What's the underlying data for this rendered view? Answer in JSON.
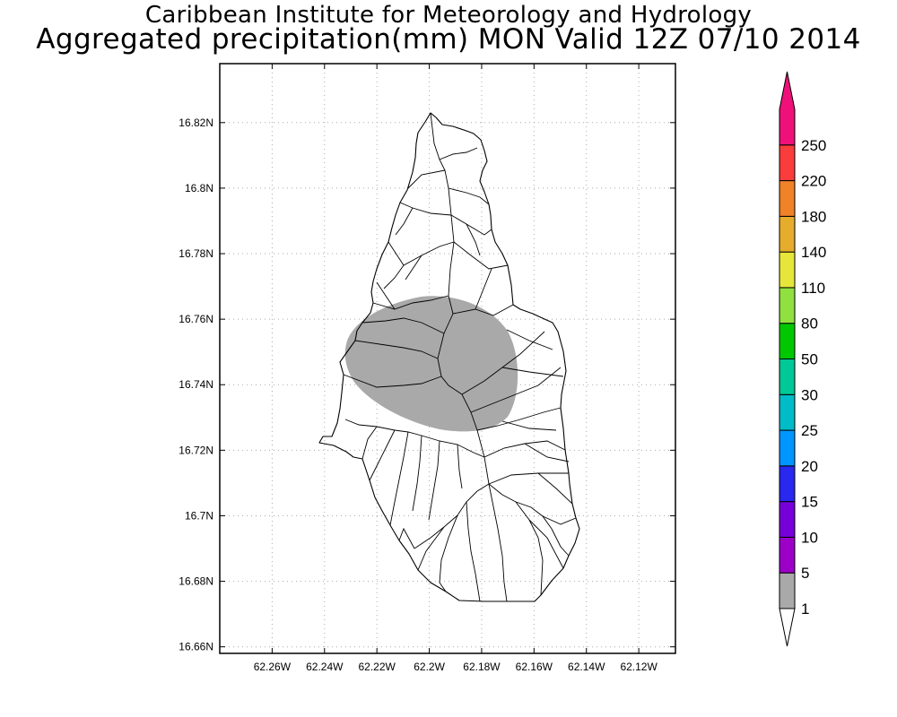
{
  "title": {
    "line1": "Caribbean Institute for Meteorology and Hydrology",
    "line2": "Aggregated precipitation(mm) MON Valid 12Z 07/10 2014"
  },
  "map": {
    "lon_range": [
      -62.28,
      -62.106
    ],
    "lat_range": [
      16.658,
      16.838
    ],
    "x_ticks": [
      {
        "value": -62.26,
        "label": "62.26W"
      },
      {
        "value": -62.24,
        "label": "62.24W"
      },
      {
        "value": -62.22,
        "label": "62.22W"
      },
      {
        "value": -62.2,
        "label": "62.2W"
      },
      {
        "value": -62.18,
        "label": "62.18W"
      },
      {
        "value": -62.16,
        "label": "62.16W"
      },
      {
        "value": -62.14,
        "label": "62.14W"
      },
      {
        "value": -62.12,
        "label": "62.12W"
      }
    ],
    "y_ticks": [
      {
        "value": 16.66,
        "label": "16.66N"
      },
      {
        "value": 16.68,
        "label": "16.68N"
      },
      {
        "value": 16.7,
        "label": "16.7N"
      },
      {
        "value": 16.72,
        "label": "16.72N"
      },
      {
        "value": 16.74,
        "label": "16.74N"
      },
      {
        "value": 16.76,
        "label": "16.76N"
      },
      {
        "value": 16.78,
        "label": "16.78N"
      },
      {
        "value": 16.8,
        "label": "16.8N"
      },
      {
        "value": 16.82,
        "label": "16.82N"
      }
    ],
    "grid": true,
    "precip_class": "1-5",
    "precip_color": "#a9a9a9"
  },
  "colorbar": {
    "labels": [
      "1",
      "5",
      "10",
      "15",
      "20",
      "25",
      "30",
      "50",
      "80",
      "110",
      "140",
      "180",
      "220",
      "250"
    ],
    "colors": [
      "#a9a9a9",
      "#9c00c8",
      "#7700da",
      "#2828ef",
      "#0096ff",
      "#00bcc8",
      "#00c896",
      "#00c800",
      "#90e040",
      "#e6e63a",
      "#e6ad2d",
      "#f08228",
      "#fa3c3c",
      "#f0107a"
    ]
  }
}
